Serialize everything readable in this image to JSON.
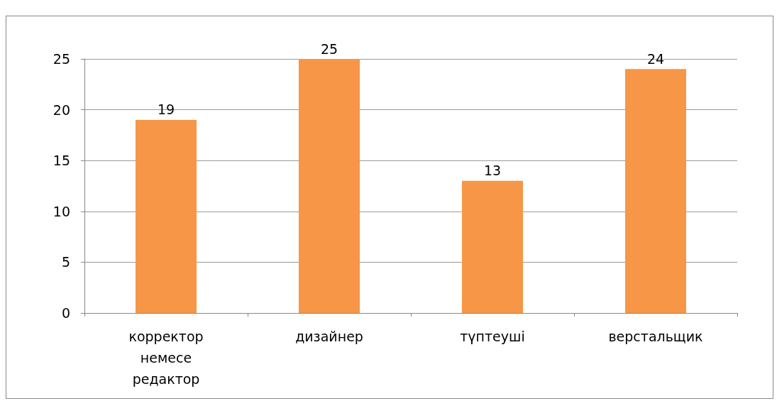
{
  "chart_data": {
    "type": "bar",
    "categories": [
      "корректор немесе редактор",
      "дизайнер",
      "түптеуші",
      "верстальщик"
    ],
    "values": [
      19,
      25,
      13,
      24
    ],
    "color": "#f79646",
    "ylim": [
      0,
      25
    ],
    "yticks": [
      0,
      5,
      10,
      15,
      20,
      25
    ],
    "grid": true,
    "data_labels": true
  }
}
